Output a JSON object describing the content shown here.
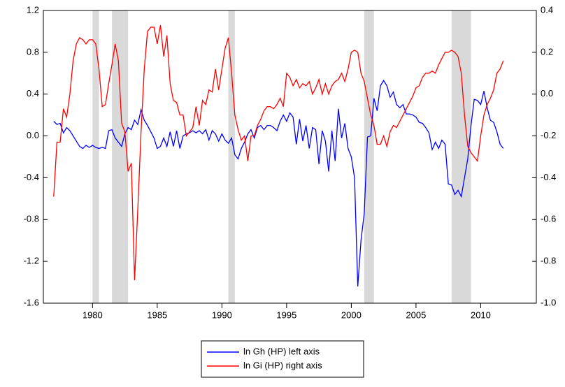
{
  "chart_data": {
    "type": "line",
    "x": [
      1977,
      1977.25,
      1977.5,
      1977.75,
      1978,
      1978.25,
      1978.5,
      1978.75,
      1979,
      1979.25,
      1979.5,
      1979.75,
      1980,
      1980.25,
      1980.5,
      1980.75,
      1981,
      1981.25,
      1981.5,
      1981.75,
      1982,
      1982.25,
      1982.5,
      1982.75,
      1983,
      1983.25,
      1983.5,
      1983.75,
      1984,
      1984.25,
      1984.5,
      1984.75,
      1985,
      1985.25,
      1985.5,
      1985.75,
      1986,
      1986.25,
      1986.5,
      1986.75,
      1987,
      1987.25,
      1987.5,
      1987.75,
      1988,
      1988.25,
      1988.5,
      1988.75,
      1989,
      1989.25,
      1989.5,
      1989.75,
      1990,
      1990.25,
      1990.5,
      1990.75,
      1991,
      1991.25,
      1991.5,
      1991.75,
      1992,
      1992.25,
      1992.5,
      1992.75,
      1993,
      1993.25,
      1993.5,
      1993.75,
      1994,
      1994.25,
      1994.5,
      1994.75,
      1995,
      1995.25,
      1995.5,
      1995.75,
      1996,
      1996.25,
      1996.5,
      1996.75,
      1997,
      1997.25,
      1997.5,
      1997.75,
      1998,
      1998.25,
      1998.5,
      1998.75,
      1999,
      1999.25,
      1999.5,
      1999.75,
      2000,
      2000.25,
      2000.5,
      2000.75,
      2001,
      2001.25,
      2001.5,
      2001.75,
      2002,
      2002.25,
      2002.5,
      2002.75,
      2003,
      2003.25,
      2003.5,
      2003.75,
      2004,
      2004.25,
      2004.5,
      2004.75,
      2005,
      2005.25,
      2005.5,
      2005.75,
      2006,
      2006.25,
      2006.5,
      2006.75,
      2007,
      2007.25,
      2007.5,
      2007.75,
      2008,
      2008.25,
      2008.5,
      2008.75,
      2009,
      2009.25,
      2009.5,
      2009.75,
      2010,
      2010.25,
      2010.5,
      2010.75,
      2011,
      2011.25,
      2011.5,
      2011.75
    ],
    "series": [
      {
        "name": "ln Gh (HP) left axis",
        "color": "#0000ff",
        "axis": "y",
        "values": [
          0.14,
          0.11,
          0.12,
          0.03,
          0.08,
          0.05,
          0.0,
          -0.05,
          -0.1,
          -0.12,
          -0.09,
          -0.11,
          -0.09,
          -0.11,
          -0.12,
          -0.11,
          -0.12,
          0.05,
          0.06,
          -0.02,
          -0.06,
          -0.1,
          0.02,
          0.08,
          0.06,
          0.15,
          0.11,
          0.25,
          0.15,
          0.1,
          0.04,
          -0.02,
          -0.12,
          -0.1,
          -0.02,
          -0.1,
          0.04,
          -0.1,
          0.05,
          -0.12,
          0.0,
          0.02,
          0.03,
          0.05,
          0.03,
          0.05,
          0.02,
          0.06,
          -0.04,
          0.05,
          0.02,
          -0.05,
          0.02,
          -0.04,
          -0.07,
          -0.02,
          -0.18,
          -0.22,
          -0.12,
          -0.06,
          0.02,
          0.06,
          -0.02,
          0.08,
          0.1,
          0.06,
          0.1,
          0.1,
          0.08,
          0.05,
          0.14,
          0.2,
          0.14,
          0.22,
          0.18,
          -0.08,
          0.16,
          -0.05,
          0.1,
          -0.12,
          0.08,
          0.06,
          -0.27,
          0.05,
          -0.05,
          -0.34,
          0.05,
          -0.24,
          0.26,
          -0.02,
          0.12,
          -0.12,
          -0.2,
          -0.4,
          -1.44,
          -1.0,
          -0.74,
          -0.01,
          0.0,
          0.36,
          0.24,
          0.48,
          0.53,
          0.48,
          0.37,
          0.42,
          0.3,
          0.27,
          0.3,
          0.21,
          0.21,
          0.2,
          0.18,
          0.13,
          0.12,
          0.08,
          0.03,
          -0.13,
          -0.06,
          -0.12,
          -0.04,
          -0.08,
          -0.46,
          -0.47,
          -0.56,
          -0.52,
          -0.58,
          -0.4,
          -0.22,
          0.1,
          0.35,
          0.34,
          0.3,
          0.43,
          0.27,
          0.15,
          0.13,
          0.04,
          -0.08,
          -0.12
        ]
      },
      {
        "name": "ln Gi (HP) right axis",
        "color": "#ff0000",
        "axis": "y2",
        "values": [
          -0.49,
          -0.23,
          -0.23,
          -0.07,
          -0.11,
          0.0,
          0.16,
          0.24,
          0.27,
          0.26,
          0.24,
          0.26,
          0.26,
          0.24,
          0.12,
          -0.06,
          -0.05,
          0.05,
          0.14,
          0.24,
          0.16,
          -0.14,
          -0.18,
          -0.37,
          -0.33,
          -0.89,
          -0.55,
          -0.18,
          0.12,
          0.3,
          0.32,
          0.32,
          0.24,
          0.33,
          0.18,
          0.28,
          0.05,
          -0.03,
          -0.04,
          -0.1,
          -0.1,
          -0.2,
          -0.18,
          -0.16,
          -0.06,
          -0.15,
          -0.03,
          -0.05,
          0.02,
          0.01,
          0.12,
          0.02,
          0.12,
          0.22,
          0.27,
          0.1,
          -0.1,
          -0.17,
          -0.22,
          -0.2,
          -0.32,
          -0.2,
          -0.2,
          -0.15,
          -0.12,
          -0.08,
          -0.06,
          -0.06,
          -0.07,
          -0.05,
          -0.02,
          -0.06,
          0.1,
          0.08,
          0.04,
          0.07,
          0.03,
          0.05,
          0.04,
          0.06,
          0.0,
          0.03,
          0.07,
          0.0,
          0.05,
          0.0,
          0.04,
          0.06,
          0.07,
          0.1,
          0.06,
          0.12,
          0.2,
          0.21,
          0.2,
          0.1,
          0.06,
          -0.02,
          -0.1,
          -0.15,
          -0.24,
          -0.24,
          -0.2,
          -0.25,
          -0.18,
          -0.15,
          -0.16,
          -0.13,
          -0.1,
          -0.07,
          -0.04,
          -0.01,
          0.03,
          0.04,
          0.08,
          0.1,
          0.1,
          0.11,
          0.1,
          0.14,
          0.17,
          0.2,
          0.2,
          0.21,
          0.2,
          0.18,
          0.1,
          -0.1,
          -0.25,
          -0.28,
          -0.3,
          -0.32,
          -0.2,
          -0.1,
          -0.05,
          -0.02,
          0.02,
          0.1,
          0.12,
          0.16
        ]
      }
    ],
    "shaded_regions": [
      [
        1980,
        1980.5
      ],
      [
        1981.5,
        1982.75
      ],
      [
        1990.5,
        1991
      ],
      [
        2001,
        2001.75
      ],
      [
        2007.75,
        2009.25
      ]
    ],
    "shade_color": "#d9d9d9",
    "xlim": [
      1976.2,
      2014.3
    ],
    "xticks": [
      1980,
      1985,
      1990,
      1995,
      2000,
      2005,
      2010
    ],
    "ylim": [
      -1.6,
      1.2
    ],
    "yticks": [
      -1.6,
      -1.2,
      -0.8,
      -0.4,
      {
        "value": 0,
        "label": "0.0"
      },
      0.4,
      0.8,
      1.2
    ],
    "y2lim": [
      -1.0,
      0.4
    ],
    "y2ticks": [
      {
        "value": -1,
        "label": "-1.0"
      },
      -0.8,
      -0.6,
      -0.4,
      -0.2,
      {
        "value": 0,
        "label": "0.0"
      },
      0.2,
      0.4
    ],
    "grid": false
  }
}
